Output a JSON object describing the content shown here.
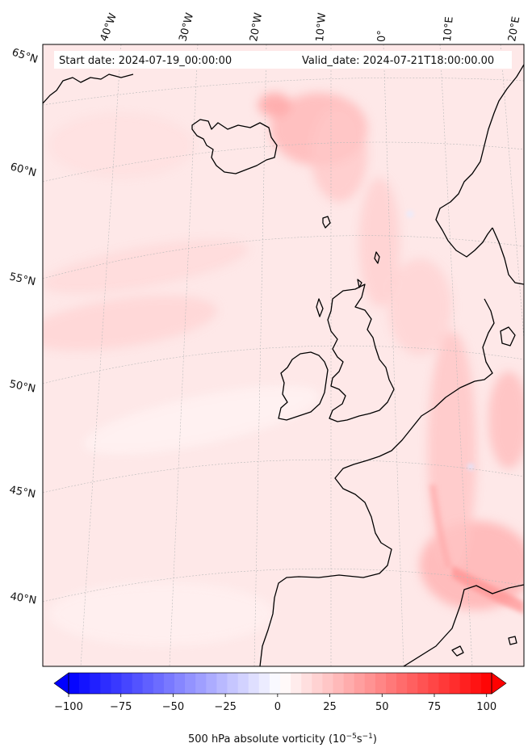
{
  "header": {
    "start_date": "Start date: 2024-07-19_00:00:00",
    "valid_date": "Valid_date: 2024-07-21T18:00:00.00"
  },
  "map": {
    "field": "500 hPa absolute vorticity",
    "longitude_labels": [
      "40°W",
      "30°W",
      "20°W",
      "10°W",
      "0°",
      "10°E",
      "20°E"
    ],
    "latitude_labels": [
      "65°N",
      "60°N",
      "55°N",
      "50°N",
      "45°N",
      "40°N"
    ],
    "background_color": "#fee8e8",
    "coastline_color": "#000000"
  },
  "colorbar": {
    "ticks": [
      "−100",
      "−75",
      "−50",
      "−25",
      "0",
      "25",
      "50",
      "75",
      "100"
    ],
    "min": -100,
    "max": 100,
    "low_color": "#0000ff",
    "mid_color": "#ffffff",
    "high_color": "#ff0000",
    "label_prefix": "500 hPa absolute vorticity (10",
    "label_exp1": "−5",
    "label_mid": "s",
    "label_exp2": "−1",
    "label_suffix": ")"
  }
}
